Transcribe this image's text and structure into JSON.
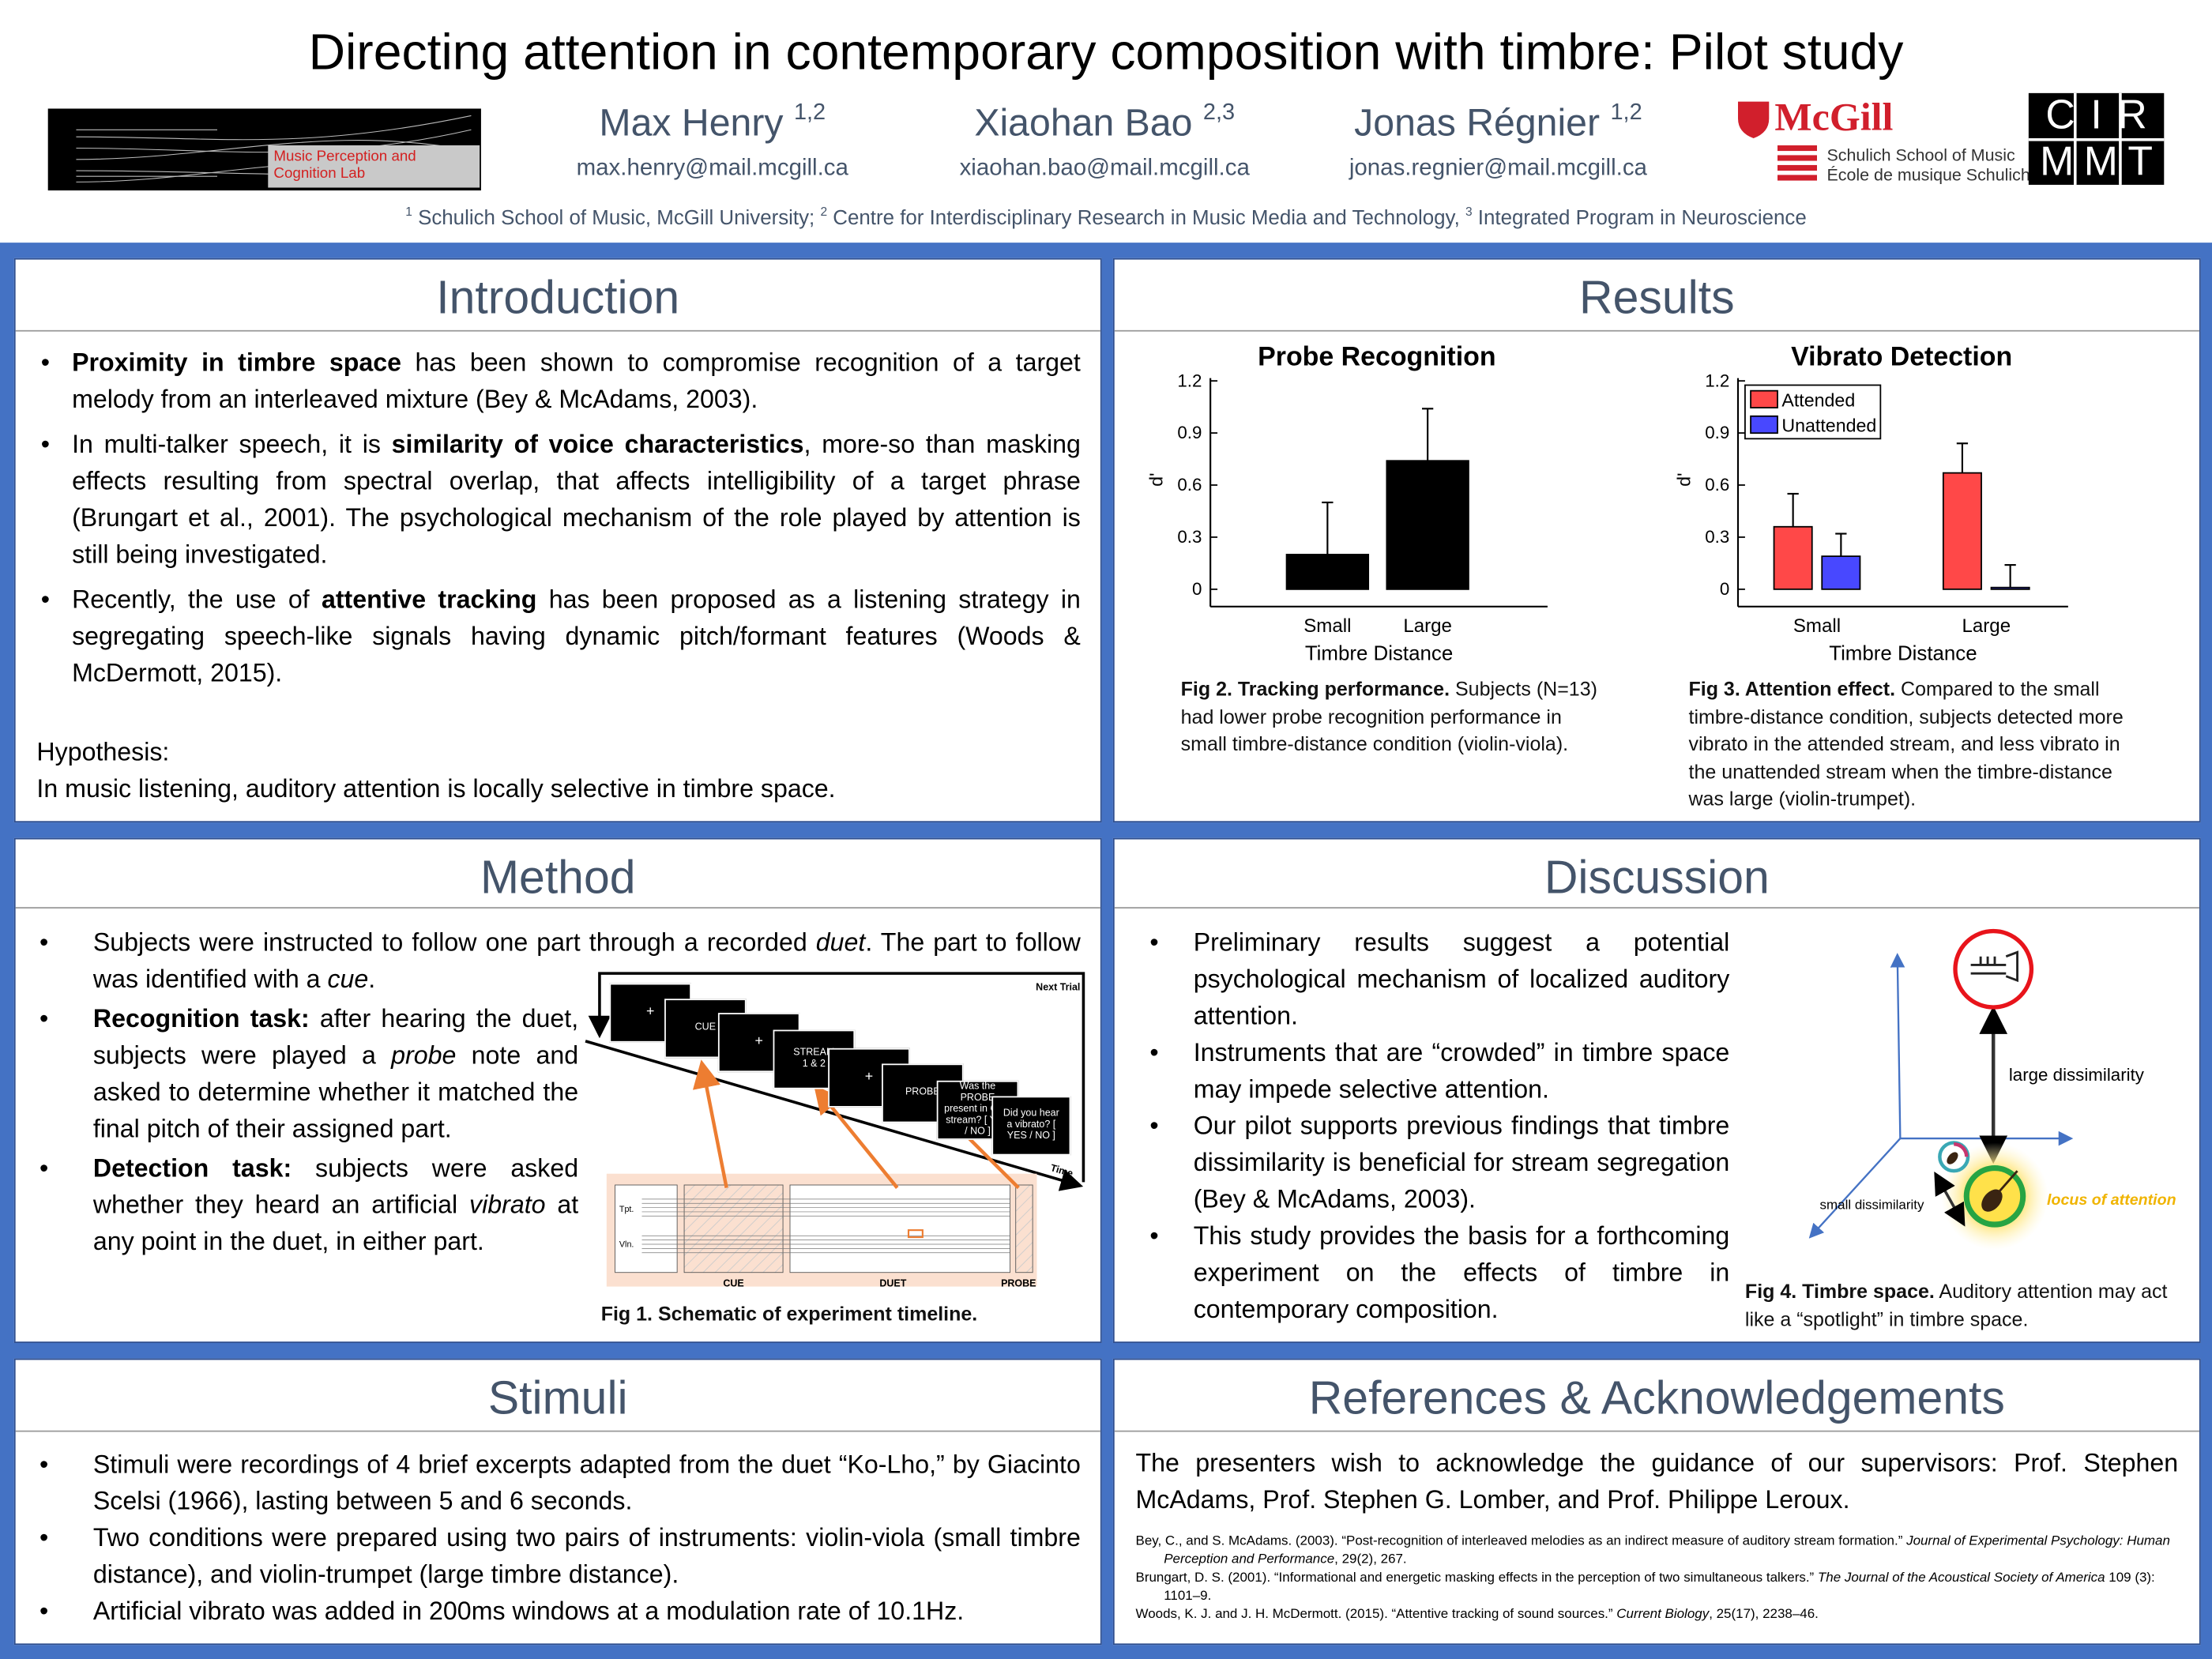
{
  "header": {
    "title": "Directing attention in contemporary composition with timbre: Pilot study",
    "authors": [
      {
        "name": "Max Henry",
        "affiliations": "1,2",
        "email": "max.henry@mail.mcgill.ca"
      },
      {
        "name": "Xiaohan Bao",
        "affiliations": "2,3",
        "email": "xiaohan.bao@mail.mcgill.ca"
      },
      {
        "name": "Jonas Régnier",
        "affiliations": "1,2",
        "email": "jonas.regnier@mail.mcgill.ca"
      }
    ],
    "affiliations": [
      {
        "text": "1",
        "sup": true
      },
      {
        "text": " Schulich School of Music, McGill University; "
      },
      {
        "text": "2",
        "sup": true
      },
      {
        "text": " Centre for Interdisciplinary Research in Music Media and Technology, "
      },
      {
        "text": "3",
        "sup": true
      },
      {
        "text": " Integrated Program in Neuroscience"
      }
    ],
    "logos": {
      "lab": "Music Perception and Cognition Lab",
      "mcgill": "McGill",
      "school": [
        "Schulich School of Music",
        "École de musique Schulich"
      ],
      "cirmmt": [
        "CIR",
        "MMT"
      ]
    }
  },
  "introduction": {
    "heading": "Introduction",
    "bullets": [
      [
        {
          "text": "Proximity in timbre space",
          "bold": true
        },
        {
          "text": " has been shown to compromise recognition of a target melody  from an interleaved mixture (Bey & McAdams, 2003)."
        }
      ],
      [
        {
          "text": "In multi-talker speech, it is "
        },
        {
          "text": "similarity of voice characteristics",
          "bold": true
        },
        {
          "text": ", more-so than masking effects resulting from spectral overlap, that affects intelligibility of a target phrase (Brungart et al., 2001). The psychological mechanism of the role played by attention is still being investigated."
        }
      ],
      [
        {
          "text": "Recently, the use of "
        },
        {
          "text": "attentive tracking",
          "bold": true
        },
        {
          "text": " has been  proposed as a listening strategy in segregating speech-like signals having dynamic pitch/formant features (Woods & McDermott, 2015)."
        }
      ]
    ],
    "hypothesis_label": "Hypothesis:",
    "hypothesis": "In music listening, auditory attention is locally selective in timbre space."
  },
  "results": {
    "heading": "Results",
    "captions": [
      [
        {
          "text": "Fig 2. Tracking performance.",
          "bold": true
        },
        {
          "text": " Subjects (N=13) had lower probe recognition performance in small timbre-distance condition (violin-viola)."
        }
      ],
      [
        {
          "text": "Fig 3. Attention effect.",
          "bold": true
        },
        {
          "text": " Compared to the small timbre-distance condition, subjects detected more vibrato in the attended stream, and less vibrato in the unattended stream when the timbre-distance was large (violin-trumpet)."
        }
      ]
    ]
  },
  "chart_data": [
    {
      "type": "bar",
      "title": "Probe Recognition",
      "categories": [
        "Small",
        "Large"
      ],
      "series": [
        {
          "color": "#000000",
          "values": [
            0.2,
            0.74
          ],
          "errors": [
            0.3,
            0.3
          ]
        }
      ],
      "x_label": "Timbre Distance",
      "y_label": "d'",
      "ylim": [
        -0.1,
        1.2
      ],
      "yticks": [
        0,
        0.3,
        0.6,
        0.9,
        1.2
      ]
    },
    {
      "type": "bar",
      "title": "Vibrato Detection",
      "categories": [
        "Small",
        "Large"
      ],
      "series": [
        {
          "name": "Attended",
          "color": "#ff4848",
          "values": [
            0.36,
            0.67
          ],
          "errors": [
            0.19,
            0.17
          ]
        },
        {
          "name": "Unattended",
          "color": "#4848ff",
          "values": [
            0.19,
            0.01
          ],
          "errors": [
            0.13,
            0.13
          ]
        }
      ],
      "x_label": "Timbre Distance",
      "y_label": "d'",
      "ylim": [
        -0.1,
        1.2
      ],
      "yticks": [
        0,
        0.3,
        0.6,
        0.9,
        1.2
      ],
      "legend": "upper left"
    }
  ],
  "method": {
    "heading": "Method",
    "bullets": [
      [
        {
          "text": "Subjects were instructed to follow one part through a recorded "
        },
        {
          "text": "duet",
          "italic": true
        },
        {
          "text": ". The part to follow was identified with a "
        },
        {
          "text": "cue",
          "italic": true
        },
        {
          "text": "."
        }
      ],
      [
        {
          "text": "Recognition task:",
          "bold": true
        },
        {
          "text": " after hearing the duet, subjects were played a "
        },
        {
          "text": "probe",
          "italic": true
        },
        {
          "text": " note and asked to determine whether it matched the final pitch of their assigned part."
        }
      ],
      [
        {
          "text": "Detection task:",
          "bold": true
        },
        {
          "text": " subjects were asked whether they heard an artificial "
        },
        {
          "text": "vibrato",
          "italic": true
        },
        {
          "text": " at any point in the duet, in either part."
        }
      ]
    ],
    "figure": {
      "screens": [
        "+",
        "CUE",
        "+",
        "STREAM 1 & 2",
        "+",
        "PROBE",
        "Was the PROBE present in CUE stream? [ YES / NO ]",
        "Did you hear a vibrato? [ YES / NO ]"
      ],
      "next_trial": "Next Trial",
      "time": "Time",
      "staves": [
        "Tpt.",
        "Vln."
      ],
      "segments": [
        "CUE",
        "DUET",
        "PROBE"
      ],
      "caption": [
        {
          "text": "Fig 1. Schematic of experiment timeline.",
          "bold": true
        }
      ]
    }
  },
  "discussion": {
    "heading": "Discussion",
    "bullets": [
      "Preliminary results suggest a potential psychological mechanism of localized auditory attention.",
      "Instruments that are “crowded” in timbre space may impede selective attention.",
      "Our pilot supports previous findings that timbre dissimilarity is beneficial for stream segregation (Bey & McAdams, 2003).",
      "This study provides the basis for a forthcoming experiment on the effects of timbre in contemporary composition."
    ],
    "figure": {
      "large": "large dissimilarity",
      "small": "small dissimilarity",
      "locus": "locus of attention",
      "caption": [
        {
          "text": "Fig 4. Timbre space.",
          "bold": true
        },
        {
          "text": " Auditory attention may act like a “spotlight” in timbre space."
        }
      ]
    }
  },
  "stimuli": {
    "heading": "Stimuli",
    "bullets": [
      "Stimuli were recordings of 4 brief excerpts adapted from the duet “Ko-Lho,” by Giacinto Scelsi (1966), lasting between 5 and 6 seconds.",
      "Two conditions were prepared using two pairs of instruments: violin-viola (small timbre distance), and violin-trumpet (large timbre distance).",
      "Artificial vibrato was added in 200ms windows at a modulation rate of 10.1Hz."
    ]
  },
  "references": {
    "heading": "References & Acknowledgements",
    "acknowledgement": "The presenters wish to acknowledge the guidance of our supervisors: Prof. Stephen McAdams, Prof. Stephen G. Lomber, and Prof. Philippe Leroux.",
    "items": [
      [
        {
          "text": "Bey, C., and S. McAdams. (2003). “Post-recognition of interleaved melodies as an indirect measure of auditory stream formation.” "
        },
        {
          "text": "Journal of Experimental Psychology: Human Perception and Performance",
          "italic": true
        },
        {
          "text": ", 29(2), 267."
        }
      ],
      [
        {
          "text": "Brungart, D. S. (2001). “Informational and energetic masking effects in the perception of two simultaneous talkers.” "
        },
        {
          "text": "The Journal of the Acoustical Society of America",
          "italic": true
        },
        {
          "text": " 109 (3): 1101–9."
        }
      ],
      [
        {
          "text": "Woods, K. J. and J. H. McDermott. (2015). “Attentive tracking of sound sources.” "
        },
        {
          "text": "Current Biology",
          "italic": true
        },
        {
          "text": ", 25(17), 2238–46."
        }
      ]
    ]
  }
}
